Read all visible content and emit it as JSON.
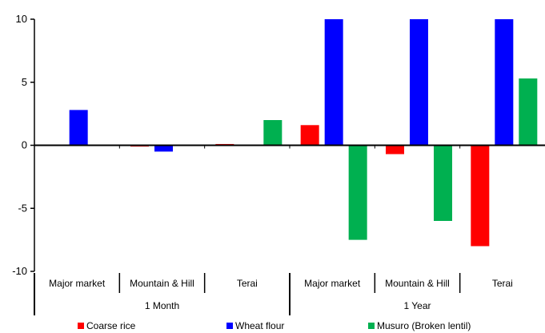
{
  "chart_data": {
    "type": "bar",
    "title": "",
    "xlabel": "",
    "ylabel": "",
    "ylim": [
      -10,
      10
    ],
    "yticks": [
      10,
      5,
      0,
      -5,
      -10
    ],
    "grid": false,
    "legend_position": "bottom",
    "categories": [
      "Major market",
      "Mountain & Hill",
      "Terai",
      "Major market",
      "Mountain & Hill",
      "Terai"
    ],
    "groups": [
      {
        "label": "1 Month",
        "categories": [
          "Major market",
          "Mountain & Hill",
          "Terai"
        ]
      },
      {
        "label": "1 Year",
        "categories": [
          "Major market",
          "Mountain & Hill",
          "Terai"
        ]
      }
    ],
    "series": [
      {
        "name": "Coarse rice",
        "color": "#ff0000",
        "values": [
          0.0,
          -0.1,
          0.1,
          1.6,
          -0.7,
          -8.0
        ]
      },
      {
        "name": "Wheat flour",
        "color": "#0000ff",
        "values": [
          2.8,
          -0.5,
          0.0,
          10.0,
          10.0,
          10.0
        ]
      },
      {
        "name": "Musuro (Broken lentil)",
        "color": "#00b050",
        "values": [
          0.0,
          0.0,
          2.0,
          -7.5,
          -6.0,
          5.3
        ]
      }
    ]
  }
}
